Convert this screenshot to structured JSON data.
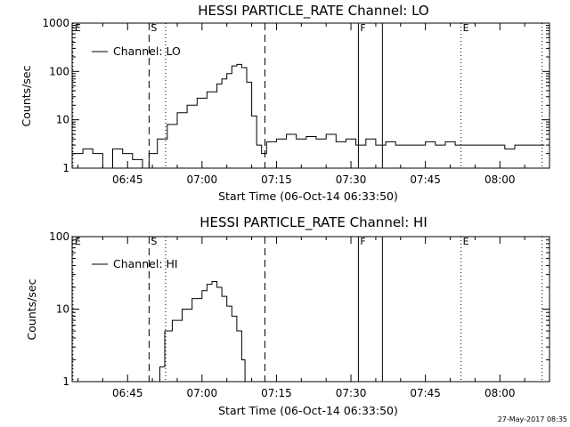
{
  "footer": {
    "timestamp": "27-May-2017 08:35"
  },
  "chart_data": [
    {
      "type": "line",
      "title": "HESSI PARTICLE_RATE Channel: LO",
      "xlabel": "Start Time (06-Oct-14 06:33:50)",
      "ylabel": "Counts/sec",
      "y_scale": "log",
      "ylim": [
        1,
        1000
      ],
      "xlim": [
        "06:33:50",
        "08:10:00"
      ],
      "x_ticks": [
        "06:45",
        "07:00",
        "07:15",
        "07:30",
        "07:45",
        "08:00"
      ],
      "y_ticks": [
        "1",
        "10",
        "100",
        "1000"
      ],
      "legend": {
        "position": "top-left",
        "label": "Channel: LO"
      },
      "markers": [
        {
          "label": "E",
          "time": "06:34:00",
          "style": "dotted"
        },
        {
          "label": "S",
          "time": "06:49:20",
          "style": "dashed"
        },
        {
          "label": "",
          "time": "06:52:40",
          "style": "dotted"
        },
        {
          "label": "",
          "time": "07:12:40",
          "style": "dashed"
        },
        {
          "label": "F",
          "time": "07:31:30",
          "style": "solid"
        },
        {
          "label": "",
          "time": "07:36:20",
          "style": "solid"
        },
        {
          "label": "E",
          "time": "07:52:10",
          "style": "dotted"
        },
        {
          "label": "",
          "time": "08:08:30",
          "style": "dotted"
        }
      ],
      "series": [
        {
          "name": "Channel: LO",
          "x": [
            "06:34:00",
            "06:36:00",
            "06:38:00",
            "06:40:00",
            "06:42:00",
            "06:44:00",
            "06:46:00",
            "06:48:00",
            "06:49:20",
            "06:51:00",
            "06:53:00",
            "06:55:00",
            "06:57:00",
            "06:59:00",
            "07:01:00",
            "07:03:00",
            "07:04:00",
            "07:05:00",
            "07:06:00",
            "07:07:00",
            "07:08:00",
            "07:09:00",
            "07:10:00",
            "07:11:00",
            "07:12:00",
            "07:13:00",
            "07:15:00",
            "07:17:00",
            "07:19:00",
            "07:21:00",
            "07:23:00",
            "07:25:00",
            "07:27:00",
            "07:29:00",
            "07:31:00",
            "07:33:00",
            "07:35:00",
            "07:37:00",
            "07:39:00",
            "07:41:00",
            "07:43:00",
            "07:45:00",
            "07:47:00",
            "07:49:00",
            "07:51:00",
            "07:53:00",
            "07:55:00",
            "07:57:00",
            "07:59:00",
            "08:01:00",
            "08:03:00",
            "08:05:00",
            "08:07:00",
            "08:09:00"
          ],
          "values": [
            2,
            2.5,
            2,
            1,
            2.5,
            2,
            1.5,
            1,
            2,
            4,
            8,
            14,
            20,
            28,
            38,
            55,
            70,
            90,
            130,
            140,
            120,
            60,
            12,
            3,
            2,
            3.5,
            4,
            5,
            4,
            4.5,
            4,
            5,
            3.5,
            4,
            3,
            4,
            3,
            3.5,
            3,
            3,
            3,
            3.5,
            3,
            3.5,
            3,
            3,
            3,
            3,
            3,
            2.5,
            3,
            3,
            3,
            3
          ]
        }
      ]
    },
    {
      "type": "line",
      "title": "HESSI PARTICLE_RATE Channel: HI",
      "xlabel": "Start Time (06-Oct-14 06:33:50)",
      "ylabel": "Counts/sec",
      "y_scale": "log",
      "ylim": [
        1,
        100
      ],
      "xlim": [
        "06:33:50",
        "08:10:00"
      ],
      "x_ticks": [
        "06:45",
        "07:00",
        "07:15",
        "07:30",
        "07:45",
        "08:00"
      ],
      "y_ticks": [
        "1",
        "10",
        "100"
      ],
      "legend": {
        "position": "top-left",
        "label": "Channel: HI"
      },
      "markers": [
        {
          "label": "E",
          "time": "06:34:00",
          "style": "dotted"
        },
        {
          "label": "S",
          "time": "06:49:20",
          "style": "dashed"
        },
        {
          "label": "",
          "time": "06:52:40",
          "style": "dotted"
        },
        {
          "label": "",
          "time": "07:12:40",
          "style": "dashed"
        },
        {
          "label": "F",
          "time": "07:31:30",
          "style": "solid"
        },
        {
          "label": "",
          "time": "07:36:20",
          "style": "solid"
        },
        {
          "label": "E",
          "time": "07:52:10",
          "style": "dotted"
        },
        {
          "label": "",
          "time": "08:08:30",
          "style": "dotted"
        }
      ],
      "series": [
        {
          "name": "Channel: HI",
          "x": [
            "06:51:00",
            "06:51:30",
            "06:52:30",
            "06:54:00",
            "06:56:00",
            "06:58:00",
            "07:00:00",
            "07:01:00",
            "07:02:00",
            "07:03:00",
            "07:04:00",
            "07:05:00",
            "07:06:00",
            "07:07:00",
            "07:08:00",
            "07:08:40"
          ],
          "values": [
            1,
            1.6,
            5,
            7,
            10,
            14,
            18,
            22,
            24,
            20,
            15,
            11,
            8,
            5,
            2,
            1
          ]
        }
      ]
    }
  ]
}
